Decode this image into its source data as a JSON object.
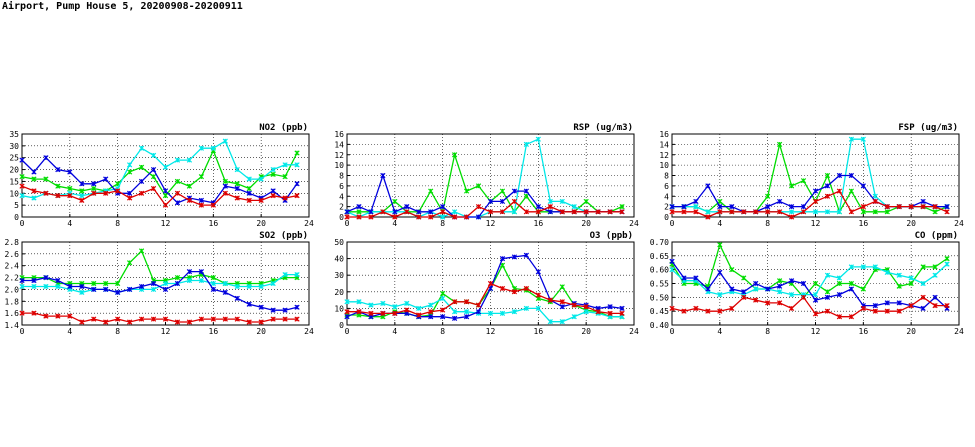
{
  "page_title": "Airport, Pump House 5, 20200908-20200911",
  "colors": {
    "green": "#00dd00",
    "cyan": "#00e8e8",
    "blue": "#0000dd",
    "red": "#dd0000",
    "grid": "#000000"
  },
  "chart_data": [
    {
      "type": "line",
      "title": "NO2 (ppb)",
      "xlim": [
        0,
        24
      ],
      "ylim": [
        0,
        35
      ],
      "xticks": [
        0,
        4,
        8,
        12,
        16,
        20,
        24
      ],
      "yticks": [
        0,
        5,
        10,
        15,
        20,
        25,
        30,
        35
      ],
      "series": [
        {
          "name": "green",
          "color": "#00dd00",
          "values": [
            17,
            16,
            16,
            13,
            12,
            11,
            12,
            11,
            14,
            19,
            21,
            17,
            9,
            15,
            13,
            17,
            28,
            15,
            14,
            12,
            17,
            18,
            17,
            27
          ]
        },
        {
          "name": "cyan",
          "color": "#00e8e8",
          "values": [
            9,
            8,
            10,
            9,
            10,
            9,
            10,
            11,
            12,
            22,
            29,
            26,
            21,
            24,
            24,
            29,
            29,
            32,
            20,
            16,
            16,
            20,
            22,
            22
          ]
        },
        {
          "name": "blue",
          "color": "#0000dd",
          "values": [
            24,
            19,
            25,
            20,
            19,
            14,
            14,
            16,
            10,
            10,
            15,
            20,
            11,
            6,
            8,
            7,
            6,
            13,
            12,
            10,
            8,
            11,
            7,
            14
          ]
        },
        {
          "name": "red",
          "color": "#dd0000",
          "values": [
            13,
            11,
            10,
            9,
            9,
            7,
            10,
            10,
            11,
            8,
            10,
            12,
            5,
            10,
            7,
            5,
            5,
            10,
            8,
            7,
            7,
            9,
            8,
            9
          ]
        }
      ]
    },
    {
      "type": "line",
      "title": "RSP (ug/m3)",
      "xlim": [
        0,
        24
      ],
      "ylim": [
        0,
        16
      ],
      "xticks": [
        0,
        4,
        8,
        12,
        16,
        20,
        24
      ],
      "yticks": [
        0,
        2,
        4,
        6,
        8,
        10,
        12,
        14,
        16
      ],
      "series": [
        {
          "name": "green",
          "color": "#00dd00",
          "values": [
            1,
            1,
            1,
            1,
            3,
            1,
            1,
            5,
            1,
            12,
            5,
            6,
            3,
            5,
            1,
            4,
            1,
            1,
            1,
            1,
            3,
            1,
            1,
            2
          ]
        },
        {
          "name": "cyan",
          "color": "#00e8e8",
          "values": [
            1,
            0,
            1,
            1,
            1,
            1,
            0,
            1,
            0,
            1,
            0,
            0,
            1,
            1,
            1,
            14,
            15,
            3,
            3,
            2,
            1,
            1,
            1,
            1
          ]
        },
        {
          "name": "blue",
          "color": "#0000dd",
          "values": [
            1,
            2,
            1,
            8,
            1,
            2,
            1,
            1,
            2,
            0,
            0,
            0,
            3,
            3,
            5,
            5,
            2,
            1,
            1,
            1,
            1,
            1,
            1,
            1
          ]
        },
        {
          "name": "red",
          "color": "#dd0000",
          "values": [
            0,
            0,
            0,
            1,
            0,
            1,
            0,
            0,
            1,
            0,
            0,
            2,
            1,
            1,
            3,
            1,
            1,
            2,
            1,
            1,
            1,
            1,
            1,
            1
          ]
        }
      ]
    },
    {
      "type": "line",
      "title": "FSP (ug/m3)",
      "xlim": [
        0,
        24
      ],
      "ylim": [
        0,
        16
      ],
      "xticks": [
        0,
        4,
        8,
        12,
        16,
        20,
        24
      ],
      "yticks": [
        0,
        2,
        4,
        6,
        8,
        10,
        12,
        14,
        16
      ],
      "series": [
        {
          "name": "green",
          "color": "#00dd00",
          "values": [
            2,
            2,
            2,
            1,
            3,
            1,
            1,
            1,
            4,
            14,
            6,
            7,
            3,
            8,
            1,
            5,
            1,
            1,
            1,
            2,
            2,
            2,
            1,
            2
          ]
        },
        {
          "name": "cyan",
          "color": "#00e8e8",
          "values": [
            2,
            2,
            2,
            1,
            1,
            1,
            1,
            1,
            1,
            1,
            1,
            1,
            1,
            1,
            1,
            15,
            15,
            4,
            2,
            2,
            2,
            2,
            2,
            2
          ]
        },
        {
          "name": "blue",
          "color": "#0000dd",
          "values": [
            2,
            2,
            3,
            6,
            2,
            2,
            1,
            1,
            2,
            3,
            2,
            2,
            5,
            6,
            8,
            8,
            6,
            3,
            2,
            2,
            2,
            3,
            2,
            2
          ]
        },
        {
          "name": "red",
          "color": "#dd0000",
          "values": [
            1,
            1,
            1,
            0,
            1,
            1,
            1,
            1,
            1,
            1,
            0,
            1,
            3,
            4,
            5,
            1,
            2,
            3,
            2,
            2,
            2,
            2,
            2,
            1
          ]
        }
      ]
    },
    {
      "type": "line",
      "title": "SO2 (ppb)",
      "xlim": [
        0,
        24
      ],
      "ylim": [
        1.4,
        2.8
      ],
      "xticks": [
        0,
        4,
        8,
        12,
        16,
        20,
        24
      ],
      "yticks": [
        1.4,
        1.6,
        1.8,
        2.0,
        2.2,
        2.4,
        2.6,
        2.8
      ],
      "series": [
        {
          "name": "green",
          "color": "#00dd00",
          "values": [
            2.2,
            2.2,
            2.2,
            2.1,
            2.1,
            2.1,
            2.1,
            2.1,
            2.1,
            2.45,
            2.65,
            2.15,
            2.15,
            2.2,
            2.2,
            2.25,
            2.2,
            2.1,
            2.1,
            2.1,
            2.1,
            2.15,
            2.2,
            2.2
          ]
        },
        {
          "name": "cyan",
          "color": "#00e8e8",
          "values": [
            2.05,
            2.05,
            2.05,
            2.05,
            2.0,
            1.95,
            2.0,
            2.0,
            1.95,
            2.0,
            2.0,
            2.0,
            2.1,
            2.1,
            2.15,
            2.15,
            2.1,
            2.1,
            2.05,
            2.05,
            2.05,
            2.1,
            2.25,
            2.25
          ]
        },
        {
          "name": "blue",
          "color": "#0000dd",
          "values": [
            2.15,
            2.15,
            2.2,
            2.15,
            2.05,
            2.05,
            2.0,
            2.0,
            1.95,
            2.0,
            2.05,
            2.1,
            2.0,
            2.1,
            2.3,
            2.3,
            2.0,
            1.95,
            1.85,
            1.75,
            1.7,
            1.65,
            1.65,
            1.7
          ]
        },
        {
          "name": "red",
          "color": "#dd0000",
          "values": [
            1.6,
            1.6,
            1.55,
            1.55,
            1.55,
            1.45,
            1.5,
            1.45,
            1.5,
            1.45,
            1.5,
            1.5,
            1.5,
            1.45,
            1.45,
            1.5,
            1.5,
            1.5,
            1.5,
            1.45,
            1.45,
            1.5,
            1.5,
            1.5
          ]
        }
      ]
    },
    {
      "type": "line",
      "title": "O3 (ppb)",
      "xlim": [
        0,
        24
      ],
      "ylim": [
        0,
        50
      ],
      "xticks": [
        0,
        4,
        8,
        12,
        16,
        20,
        24
      ],
      "yticks": [
        0,
        10,
        20,
        30,
        40,
        50
      ],
      "series": [
        {
          "name": "green",
          "color": "#00dd00",
          "values": [
            6,
            6,
            5,
            5,
            8,
            7,
            5,
            6,
            19,
            14,
            14,
            12,
            22,
            36,
            22,
            21,
            16,
            14,
            23,
            12,
            9,
            8,
            5,
            5
          ]
        },
        {
          "name": "cyan",
          "color": "#00e8e8",
          "values": [
            14,
            14,
            12,
            13,
            11,
            13,
            10,
            12,
            16,
            8,
            8,
            7,
            7,
            7,
            8,
            10,
            10,
            2,
            2,
            5,
            8,
            7,
            5,
            5
          ]
        },
        {
          "name": "blue",
          "color": "#0000dd",
          "values": [
            5,
            8,
            5,
            7,
            7,
            7,
            5,
            5,
            5,
            4,
            5,
            8,
            22,
            40,
            41,
            42,
            32,
            15,
            11,
            13,
            12,
            10,
            11,
            10
          ]
        },
        {
          "name": "red",
          "color": "#dd0000",
          "values": [
            8,
            8,
            7,
            7,
            7,
            9,
            6,
            8,
            9,
            14,
            14,
            12,
            25,
            22,
            20,
            22,
            18,
            15,
            14,
            12,
            11,
            8,
            7,
            7
          ]
        }
      ]
    },
    {
      "type": "line",
      "title": "CO (ppm)",
      "xlim": [
        0,
        24
      ],
      "ylim": [
        0.4,
        0.7
      ],
      "xticks": [
        0,
        4,
        8,
        12,
        16,
        20,
        24
      ],
      "yticks": [
        0.4,
        0.45,
        0.5,
        0.55,
        0.6,
        0.65,
        0.7
      ],
      "series": [
        {
          "name": "green",
          "color": "#00dd00",
          "values": [
            0.62,
            0.55,
            0.55,
            0.54,
            0.69,
            0.6,
            0.57,
            0.53,
            0.53,
            0.56,
            0.55,
            0.5,
            0.55,
            0.52,
            0.55,
            0.55,
            0.53,
            0.6,
            0.6,
            0.54,
            0.55,
            0.61,
            0.61,
            0.64
          ]
        },
        {
          "name": "cyan",
          "color": "#00e8e8",
          "values": [
            0.6,
            0.56,
            0.56,
            0.52,
            0.51,
            0.52,
            0.51,
            0.53,
            0.53,
            0.52,
            0.51,
            0.51,
            0.51,
            0.58,
            0.57,
            0.61,
            0.61,
            0.61,
            0.59,
            0.58,
            0.57,
            0.55,
            0.58,
            0.62
          ]
        },
        {
          "name": "blue",
          "color": "#0000dd",
          "values": [
            0.63,
            0.57,
            0.57,
            0.53,
            0.59,
            0.53,
            0.52,
            0.55,
            0.53,
            0.54,
            0.56,
            0.55,
            0.49,
            0.5,
            0.51,
            0.53,
            0.47,
            0.47,
            0.48,
            0.48,
            0.47,
            0.46,
            0.5,
            0.46
          ]
        },
        {
          "name": "red",
          "color": "#dd0000",
          "values": [
            0.46,
            0.45,
            0.46,
            0.45,
            0.45,
            0.46,
            0.5,
            0.49,
            0.48,
            0.48,
            0.46,
            0.5,
            0.44,
            0.45,
            0.43,
            0.43,
            0.46,
            0.45,
            0.45,
            0.45,
            0.47,
            0.5,
            0.47,
            0.47
          ]
        }
      ]
    }
  ]
}
